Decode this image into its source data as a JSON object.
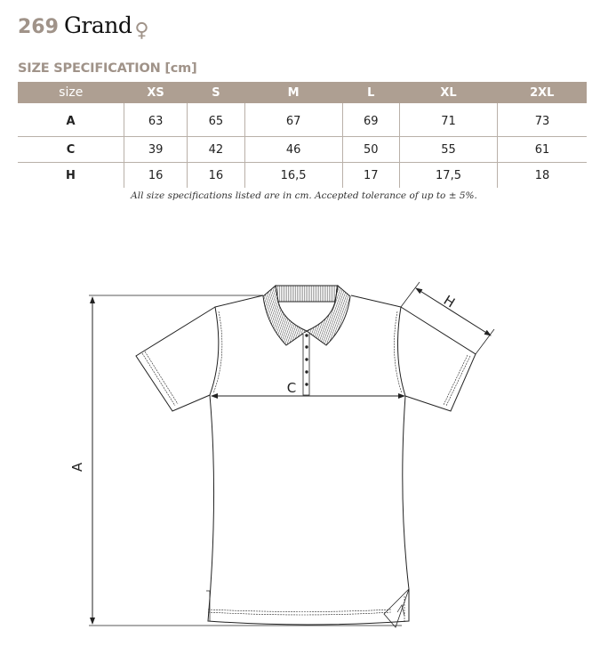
{
  "header": {
    "model_number": "269",
    "model_name": "Grand",
    "gender_symbol": "♀",
    "gender_icon": "female-symbol-icon"
  },
  "spec_title": "SIZE SPECIFICATION [cm]",
  "table": {
    "columns": [
      "size",
      "XS",
      "S",
      "M",
      "L",
      "XL",
      "2XL"
    ],
    "rows": [
      {
        "label": "A",
        "values": [
          "63",
          "65",
          "67",
          "69",
          "71",
          "73"
        ]
      },
      {
        "label": "C",
        "values": [
          "39",
          "42",
          "46",
          "50",
          "55",
          "61"
        ]
      },
      {
        "label": "H",
        "values": [
          "16",
          "16",
          "16,5",
          "17",
          "17,5",
          "18"
        ]
      }
    ]
  },
  "note": "All size specifications listed are in cm. Accepted tolerance of up to ± 5%.",
  "diagram": {
    "labels": {
      "length": "A",
      "chest": "C",
      "sleeve": "H"
    }
  },
  "colors": {
    "accent": "#ae9f92",
    "title_number": "#a09389"
  }
}
